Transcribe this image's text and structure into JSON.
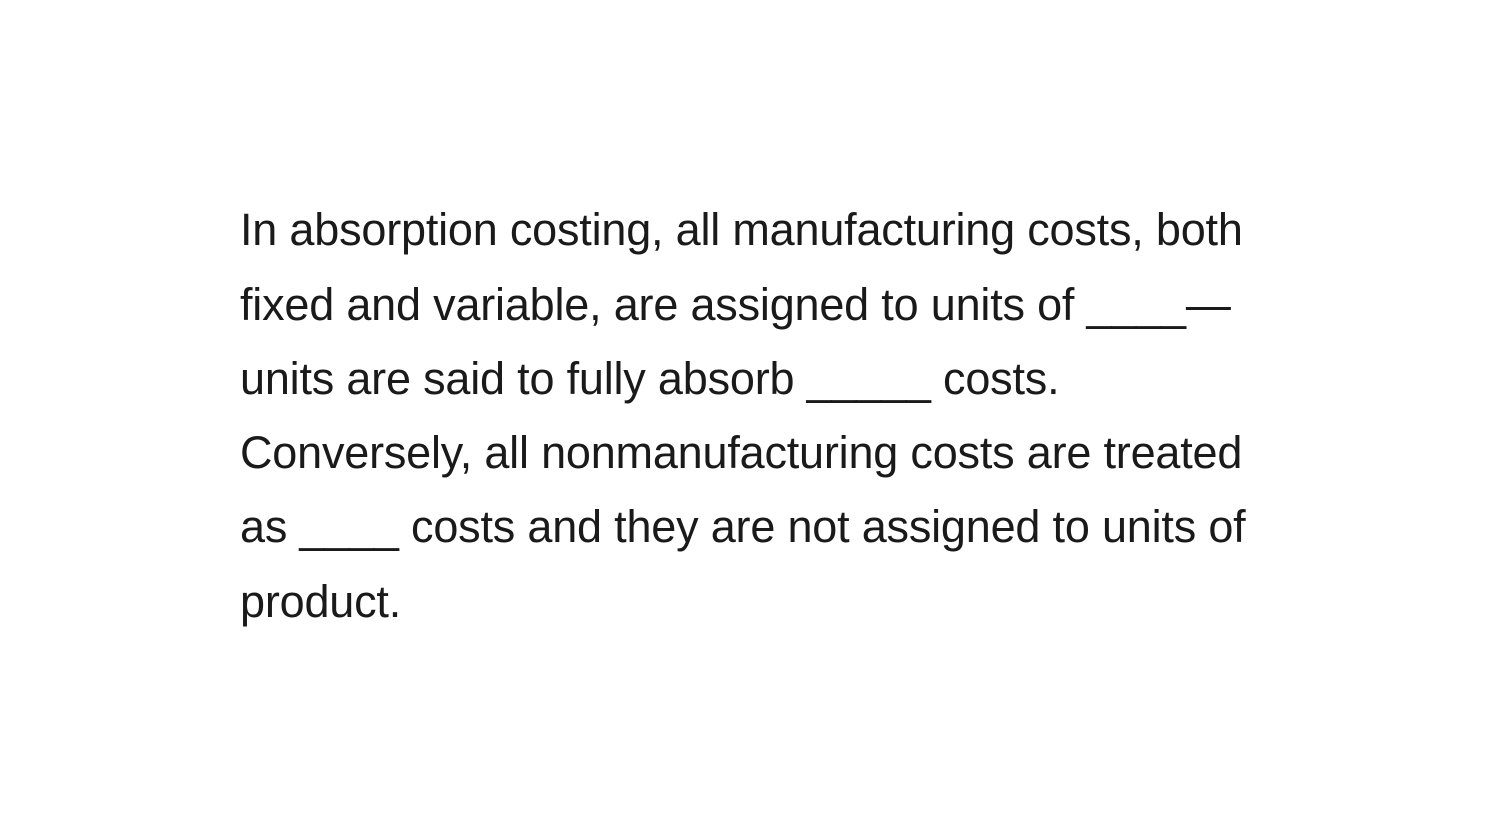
{
  "content": {
    "paragraph1": "In absorption costing, all manufacturing costs, both fixed and variable, are assigned to units of ____—units are said to fully absorb _____ costs.",
    "paragraph2": "Conversely, all nonmanufacturing costs are treated as ____ costs and they are not assigned to units of product."
  },
  "styling": {
    "background_color": "#ffffff",
    "text_color": "#1a1a1a",
    "font_size": 45,
    "line_height": 1.65,
    "container_width": 1100
  }
}
